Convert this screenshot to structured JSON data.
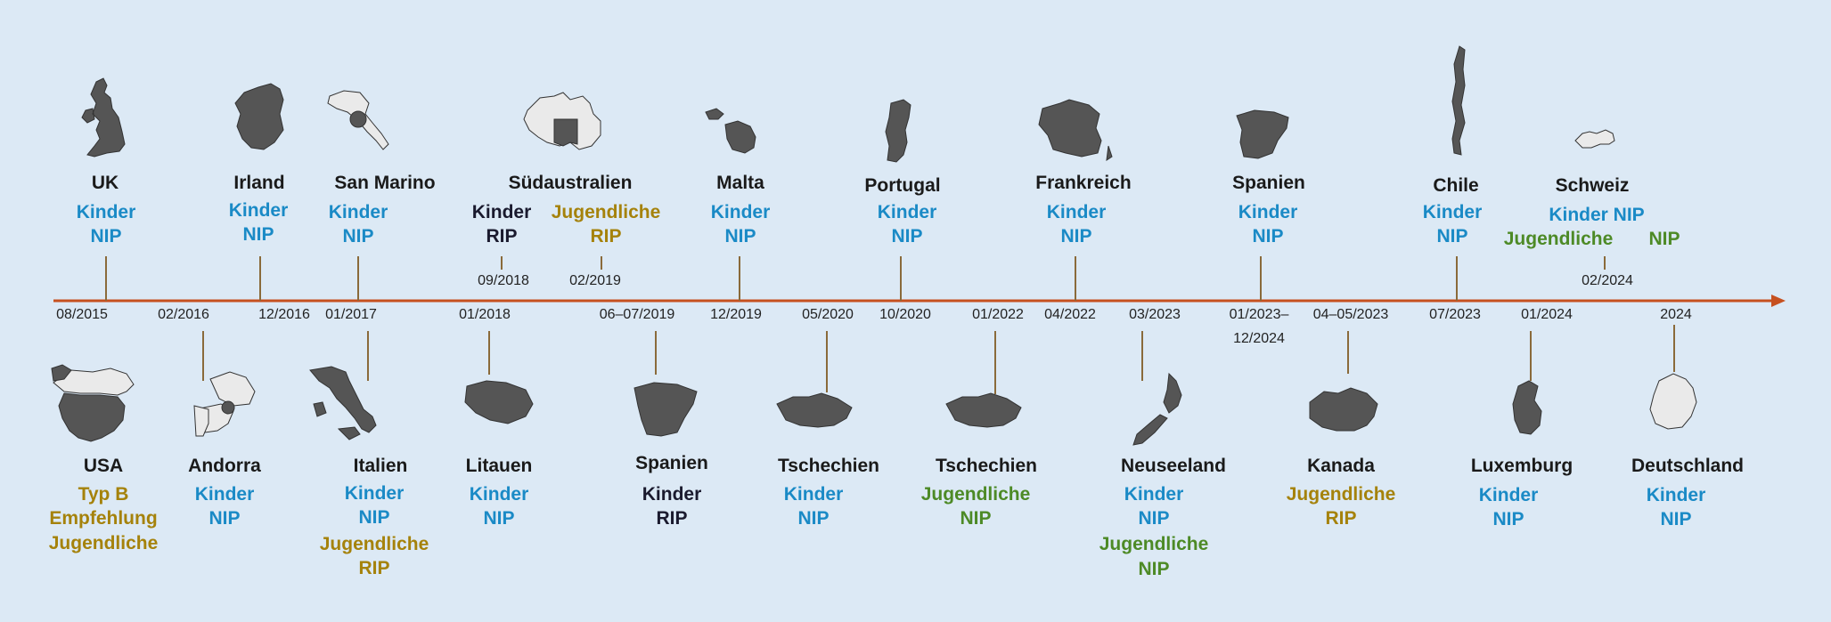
{
  "colors": {
    "background": "#dce9f5",
    "axis": "#c6501f",
    "children_nip": "#1a8ac6",
    "youth_rip": "#a5820b",
    "youth_nip": "#4d8a26",
    "dark": "#1a1a2e",
    "country_fill": "#555555"
  },
  "top": {
    "uk": {
      "country": "UK",
      "l1": "Kinder",
      "l2": "NIP",
      "date": "08/2015",
      "icon": "uk-map-icon"
    },
    "irland": {
      "country": "Irland",
      "l1": "Kinder",
      "l2": "NIP",
      "date": "12/2016",
      "icon": "ireland-map-icon"
    },
    "sanmarino": {
      "country": "San Marino",
      "l1": "Kinder",
      "l2": "NIP",
      "date": "01/2017",
      "icon": "san-marino-map-icon"
    },
    "suedaustralien": {
      "country": "Südaustralien",
      "a1": "Kinder",
      "a2": "RIP",
      "a_date": "09/2018",
      "b1": "Jugendliche",
      "b2": "RIP",
      "b_date": "02/2019",
      "icon": "australia-map-icon"
    },
    "malta": {
      "country": "Malta",
      "l1": "Kinder",
      "l2": "NIP",
      "date": "12/2019",
      "icon": "malta-map-icon"
    },
    "portugal": {
      "country": "Portugal",
      "l1": "Kinder",
      "l2": "NIP",
      "date": "10/2020",
      "icon": "portugal-map-icon"
    },
    "frankreich": {
      "country": "Frankreich",
      "l1": "Kinder",
      "l2": "NIP",
      "date": "04/2022",
      "icon": "france-map-icon"
    },
    "spanien": {
      "country": "Spanien",
      "l1": "Kinder",
      "l2": "NIP",
      "date1": "01/2023–",
      "date2": "12/2024",
      "icon": "spain-map-icon"
    },
    "chile": {
      "country": "Chile",
      "l1": "Kinder",
      "l2": "NIP",
      "date": "07/2023",
      "icon": "chile-map-icon"
    },
    "schweiz": {
      "country": "Schweiz",
      "l1": "Kinder NIP",
      "l2a": "Jugendliche",
      "l2b": "NIP",
      "date": "02/2024",
      "icon": "switzerland-map-icon"
    }
  },
  "bottom": {
    "usa": {
      "country": "USA",
      "l1": "Typ B",
      "l2": "Empfehlung",
      "l3": "Jugendliche",
      "icon": "usa-map-icon"
    },
    "andorra": {
      "country": "Andorra",
      "l1": "Kinder",
      "l2": "NIP",
      "date": "02/2016",
      "icon": "andorra-map-icon"
    },
    "italien": {
      "country": "Italien",
      "l1": "Kinder",
      "l2": "NIP",
      "l3": "Jugendliche",
      "l4": "RIP",
      "date": "01/2017",
      "icon": "italy-map-icon"
    },
    "litauen": {
      "country": "Litauen",
      "l1": "Kinder",
      "l2": "NIP",
      "date": "01/2018",
      "icon": "lithuania-map-icon"
    },
    "spanien": {
      "country": "Spanien",
      "l1": "Kinder",
      "l2": "RIP",
      "date": "06–07/2019",
      "icon": "spain-map-icon"
    },
    "tschechien1": {
      "country": "Tschechien",
      "l1": "Kinder",
      "l2": "NIP",
      "date": "05/2020",
      "icon": "czechia-map-icon"
    },
    "tschechien2": {
      "country": "Tschechien",
      "l1": "Jugendliche",
      "l2": "NIP",
      "date": "01/2022",
      "icon": "czechia-map-icon"
    },
    "neuseeland": {
      "country": "Neuseeland",
      "l1": "Kinder",
      "l2": "NIP",
      "l3": "Jugendliche",
      "l4": "NIP",
      "date": "03/2023",
      "icon": "new-zealand-map-icon"
    },
    "kanada": {
      "country": "Kanada",
      "l1": "Jugendliche",
      "l2": "RIP",
      "date": "04–05/2023",
      "icon": "canada-map-icon"
    },
    "luxemburg": {
      "country": "Luxemburg",
      "l1": "Kinder",
      "l2": "NIP",
      "date": "01/2024",
      "icon": "luxembourg-map-icon"
    },
    "deutschland": {
      "country": "Deutschland",
      "l1": "Kinder",
      "l2": "NIP",
      "date": "2024",
      "icon": "germany-map-icon"
    }
  }
}
